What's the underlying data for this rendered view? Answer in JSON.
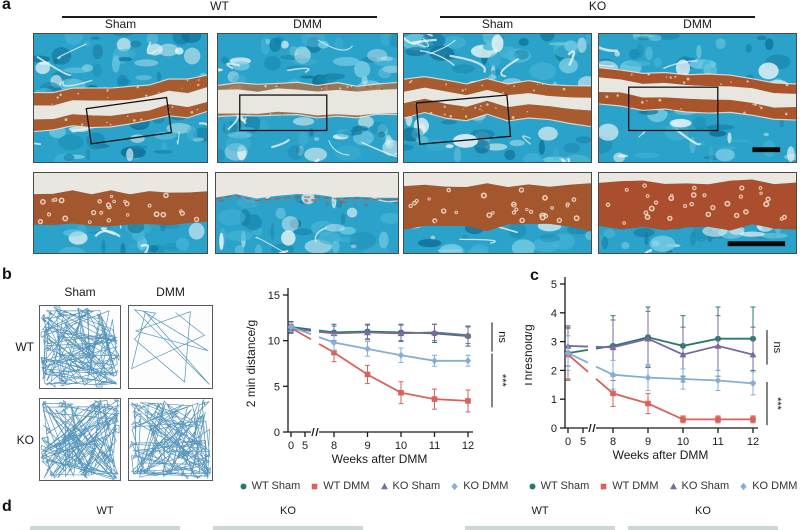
{
  "figure": {
    "panel_a": {
      "label": "a",
      "groups": [
        {
          "genotype": "WT",
          "conditions": [
            "Sham",
            "DMM"
          ]
        },
        {
          "genotype": "KO",
          "conditions": [
            "Sham",
            "DMM"
          ]
        }
      ],
      "stain_colors": {
        "bone": "#2ba2c9",
        "cartilage": "#a65c2f",
        "joint_space": "#e9e6df"
      }
    },
    "panel_b": {
      "label": "b",
      "columns": [
        "Sham",
        "DMM"
      ],
      "rows": [
        "WT",
        "KO"
      ],
      "traces": [
        {
          "genotype": "WT",
          "condition": "Sham",
          "activity": "high"
        },
        {
          "genotype": "WT",
          "condition": "DMM",
          "activity": "low"
        },
        {
          "genotype": "KO",
          "condition": "Sham",
          "activity": "high"
        },
        {
          "genotype": "KO",
          "condition": "DMM",
          "activity": "high"
        }
      ],
      "trace_color": "#3e86b0"
    },
    "panel_c": {
      "label": "c"
    },
    "panel_d": {
      "label": "d",
      "columns": [
        "WT",
        "KO",
        "WT",
        "KO"
      ]
    }
  },
  "chart_data": [
    {
      "id": "distance",
      "type": "line",
      "title": "",
      "xlabel": "Weeks after DMM",
      "ylabel": "2 min distance/g",
      "ylim": [
        0,
        15
      ],
      "yticks": [
        0,
        5,
        10,
        15
      ],
      "xticks": [
        0,
        5,
        8,
        9,
        10,
        11,
        12
      ],
      "x_break": [
        5,
        8
      ],
      "x": [
        0,
        8,
        9,
        10,
        11,
        12
      ],
      "series": [
        {
          "name": "WT Sham",
          "marker": "circle",
          "color": "#257a6d",
          "values": [
            11.5,
            10.9,
            11.0,
            10.9,
            10.8,
            10.5
          ],
          "errors": [
            0.6,
            0.9,
            0.8,
            0.9,
            1.0,
            1.1
          ]
        },
        {
          "name": "WT DMM",
          "marker": "square",
          "color": "#d8625a",
          "values": [
            11.4,
            8.7,
            6.3,
            4.3,
            3.6,
            3.4
          ],
          "errors": [
            0.6,
            1.0,
            1.0,
            1.2,
            1.1,
            1.2
          ]
        },
        {
          "name": "KO Sham",
          "marker": "triangle",
          "color": "#786a9e",
          "values": [
            11.3,
            10.8,
            10.9,
            10.8,
            10.9,
            10.6
          ],
          "errors": [
            0.5,
            0.8,
            0.8,
            0.9,
            0.9,
            0.9
          ]
        },
        {
          "name": "KO DMM",
          "marker": "diamond",
          "color": "#84aed3",
          "values": [
            11.5,
            9.8,
            9.1,
            8.4,
            7.8,
            7.8
          ],
          "errors": [
            0.5,
            0.9,
            0.8,
            0.8,
            0.6,
            0.6
          ]
        }
      ],
      "annotations": [
        {
          "text": "ns",
          "y_from": 8.8,
          "y_to": 12.0
        },
        {
          "text": "***",
          "y_from": 2.7,
          "y_to": 8.6
        }
      ],
      "legend": [
        "WT Sham",
        "WT DMM",
        "KO Sham",
        "KO DMM"
      ],
      "legend_position": "bottom",
      "grid": false
    },
    {
      "id": "threshold",
      "type": "line",
      "title": "",
      "xlabel": "Weeks after DMM",
      "ylabel": "Threshold/g",
      "ylim": [
        0,
        5
      ],
      "yticks": [
        0,
        1,
        2,
        3,
        4,
        5
      ],
      "xticks": [
        0,
        5,
        8,
        9,
        10,
        11,
        12
      ],
      "x_break": [
        5,
        8
      ],
      "x": [
        0,
        8,
        9,
        10,
        11,
        12
      ],
      "series": [
        {
          "name": "WT Sham",
          "marker": "circle",
          "color": "#257a6d",
          "values": [
            2.6,
            2.85,
            3.15,
            2.85,
            3.1,
            3.1
          ],
          "errors": [
            0.9,
            1.05,
            1.05,
            1.05,
            1.1,
            1.1
          ]
        },
        {
          "name": "WT DMM",
          "marker": "square",
          "color": "#d8625a",
          "values": [
            2.55,
            1.2,
            0.85,
            0.3,
            0.3,
            0.3
          ],
          "errors": [
            0.9,
            0.45,
            0.35,
            0.12,
            0.12,
            0.12
          ]
        },
        {
          "name": "KO Sham",
          "marker": "triangle",
          "color": "#786a9e",
          "values": [
            2.85,
            2.8,
            3.1,
            2.55,
            2.85,
            2.55
          ],
          "errors": [
            0.7,
            0.95,
            0.95,
            0.95,
            1.05,
            0.95
          ]
        },
        {
          "name": "KO DMM",
          "marker": "diamond",
          "color": "#84aed3",
          "values": [
            2.6,
            1.85,
            1.75,
            1.7,
            1.65,
            1.55
          ],
          "errors": [
            0.6,
            0.5,
            0.45,
            0.35,
            0.35,
            0.4
          ]
        }
      ],
      "annotations": [
        {
          "text": "ns",
          "y_from": 2.2,
          "y_to": 3.4
        },
        {
          "text": "***",
          "y_from": 0.1,
          "y_to": 1.6
        }
      ],
      "legend": [
        "WT Sham",
        "WT DMM",
        "KO Sham",
        "KO DMM"
      ],
      "legend_position": "bottom",
      "grid": false
    }
  ]
}
